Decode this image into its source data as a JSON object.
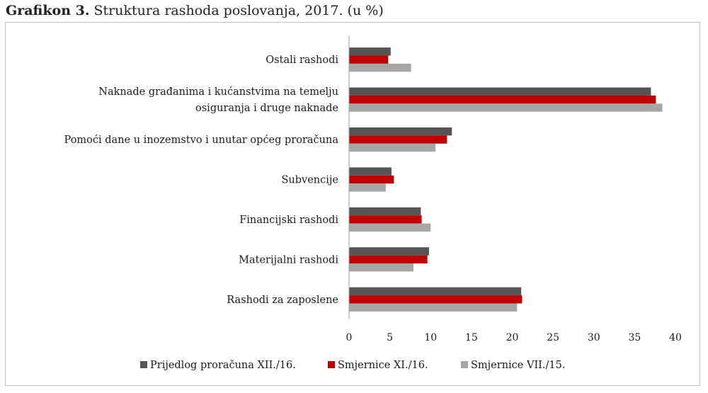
{
  "header": {
    "title_bold": "Grafikon 3.",
    "title_rest": " Struktura rashoda poslovanja, 2017. (u %)"
  },
  "colors": {
    "series1": "#555555",
    "series2": "#c00000",
    "series3": "#a6a6a6",
    "axis": "#a0a0a0"
  },
  "chart_data": {
    "type": "bar",
    "orientation": "horizontal",
    "title": "Struktura rashoda poslovanja, 2017. (u %)",
    "categories": [
      [
        "Ostali rashodi"
      ],
      [
        "Naknade građanima i kućanstvima na temelju",
        "osiguranja i druge naknade"
      ],
      [
        "Pomoći dane u inozemstvo i unutar općeg proračuna"
      ],
      [
        "Subvencije"
      ],
      [
        "Financijski rashodi"
      ],
      [
        "Materijalni rashodi"
      ],
      [
        "Rashodi za zaposlene"
      ]
    ],
    "series": [
      {
        "name": "Prijedlog proračuna XII./16.",
        "values": [
          5.1,
          37.0,
          12.6,
          5.2,
          8.8,
          9.8,
          21.1
        ]
      },
      {
        "name": "Smjernice XI./16.",
        "values": [
          4.8,
          37.6,
          12.0,
          5.5,
          8.9,
          9.6,
          21.2
        ]
      },
      {
        "name": "Smjernice VII./15.",
        "values": [
          7.6,
          38.4,
          10.6,
          4.5,
          10.0,
          7.9,
          20.6
        ]
      }
    ],
    "xlim": [
      0,
      40
    ],
    "xticks": [
      "0",
      "5",
      "10",
      "15",
      "20",
      "25",
      "30",
      "35",
      "40"
    ],
    "grid": false,
    "legend": "bottom"
  }
}
